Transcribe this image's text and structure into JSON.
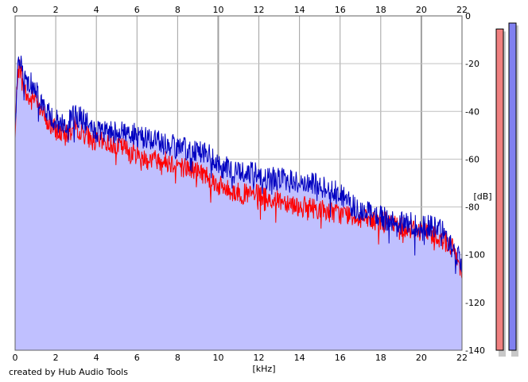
{
  "chart_data": {
    "type": "line",
    "xlabel": "[kHz]",
    "ylabel": "[dB]",
    "xlim": [
      0,
      22
    ],
    "ylim": [
      -140,
      0
    ],
    "x_ticks": [
      0,
      2,
      4,
      6,
      8,
      10,
      12,
      14,
      16,
      18,
      20,
      22
    ],
    "y_ticks": [
      0,
      -20,
      -40,
      -60,
      -80,
      -100,
      -120,
      -140
    ],
    "grid": true,
    "fill_color": "#c0c0ff",
    "series": [
      {
        "color": "#ff0000",
        "x": [
          0,
          0.05,
          0.1,
          0.2,
          0.3,
          0.4,
          0.6,
          0.8,
          1,
          1.2,
          1.5,
          2,
          2.5,
          3,
          3.5,
          4,
          4.5,
          5,
          5.5,
          6,
          6.5,
          7,
          7.5,
          8,
          8.5,
          9,
          9.5,
          10,
          10.5,
          11,
          11.5,
          12,
          12.5,
          13,
          13.5,
          14,
          14.5,
          15,
          15.5,
          16,
          16.5,
          17,
          17.5,
          18,
          18.5,
          19,
          19.5,
          20,
          20.5,
          21,
          21.5,
          22
        ],
        "y": [
          -52,
          -40,
          -26,
          -20,
          -25,
          -30,
          -34,
          -36,
          -33,
          -36,
          -44,
          -48,
          -50,
          -46,
          -50,
          -53,
          -53,
          -54,
          -56,
          -58,
          -60,
          -60,
          -61,
          -62,
          -64,
          -65,
          -67,
          -71,
          -73,
          -74,
          -75,
          -75,
          -77,
          -77,
          -78,
          -80,
          -80,
          -81,
          -82,
          -83,
          -83,
          -85,
          -86,
          -86,
          -87,
          -88,
          -89,
          -90,
          -91,
          -93,
          -97,
          -106
        ]
      },
      {
        "color": "#0000c0",
        "x": [
          0,
          0.05,
          0.1,
          0.2,
          0.3,
          0.4,
          0.6,
          0.8,
          1,
          1.2,
          1.5,
          2,
          2.5,
          3,
          3.5,
          4,
          4.5,
          5,
          5.5,
          6,
          6.5,
          7,
          7.5,
          8,
          8.5,
          9,
          9.5,
          10,
          10.5,
          11,
          11.5,
          12,
          12.5,
          13,
          13.5,
          14,
          14.5,
          15,
          15.5,
          16,
          16.5,
          17,
          17.5,
          18,
          18.5,
          19,
          19.5,
          20,
          20.5,
          21,
          21.5,
          22
        ],
        "y": [
          -44,
          -36,
          -24,
          -17,
          -21,
          -25,
          -28,
          -28,
          -30,
          -34,
          -40,
          -44,
          -46,
          -41,
          -45,
          -49,
          -49,
          -48,
          -49,
          -50,
          -51,
          -52,
          -54,
          -55,
          -56,
          -56,
          -58,
          -63,
          -64,
          -65,
          -66,
          -66,
          -68,
          -68,
          -69,
          -70,
          -70,
          -71,
          -72,
          -74,
          -79,
          -81,
          -83,
          -84,
          -86,
          -87,
          -87,
          -88,
          -88,
          -90,
          -97,
          -103
        ]
      }
    ],
    "meters": [
      {
        "color": "#f08080",
        "value": -5.5
      },
      {
        "color": "#8080f0",
        "value": -3.0
      }
    ],
    "credit": "created by Hub Audio Tools"
  }
}
